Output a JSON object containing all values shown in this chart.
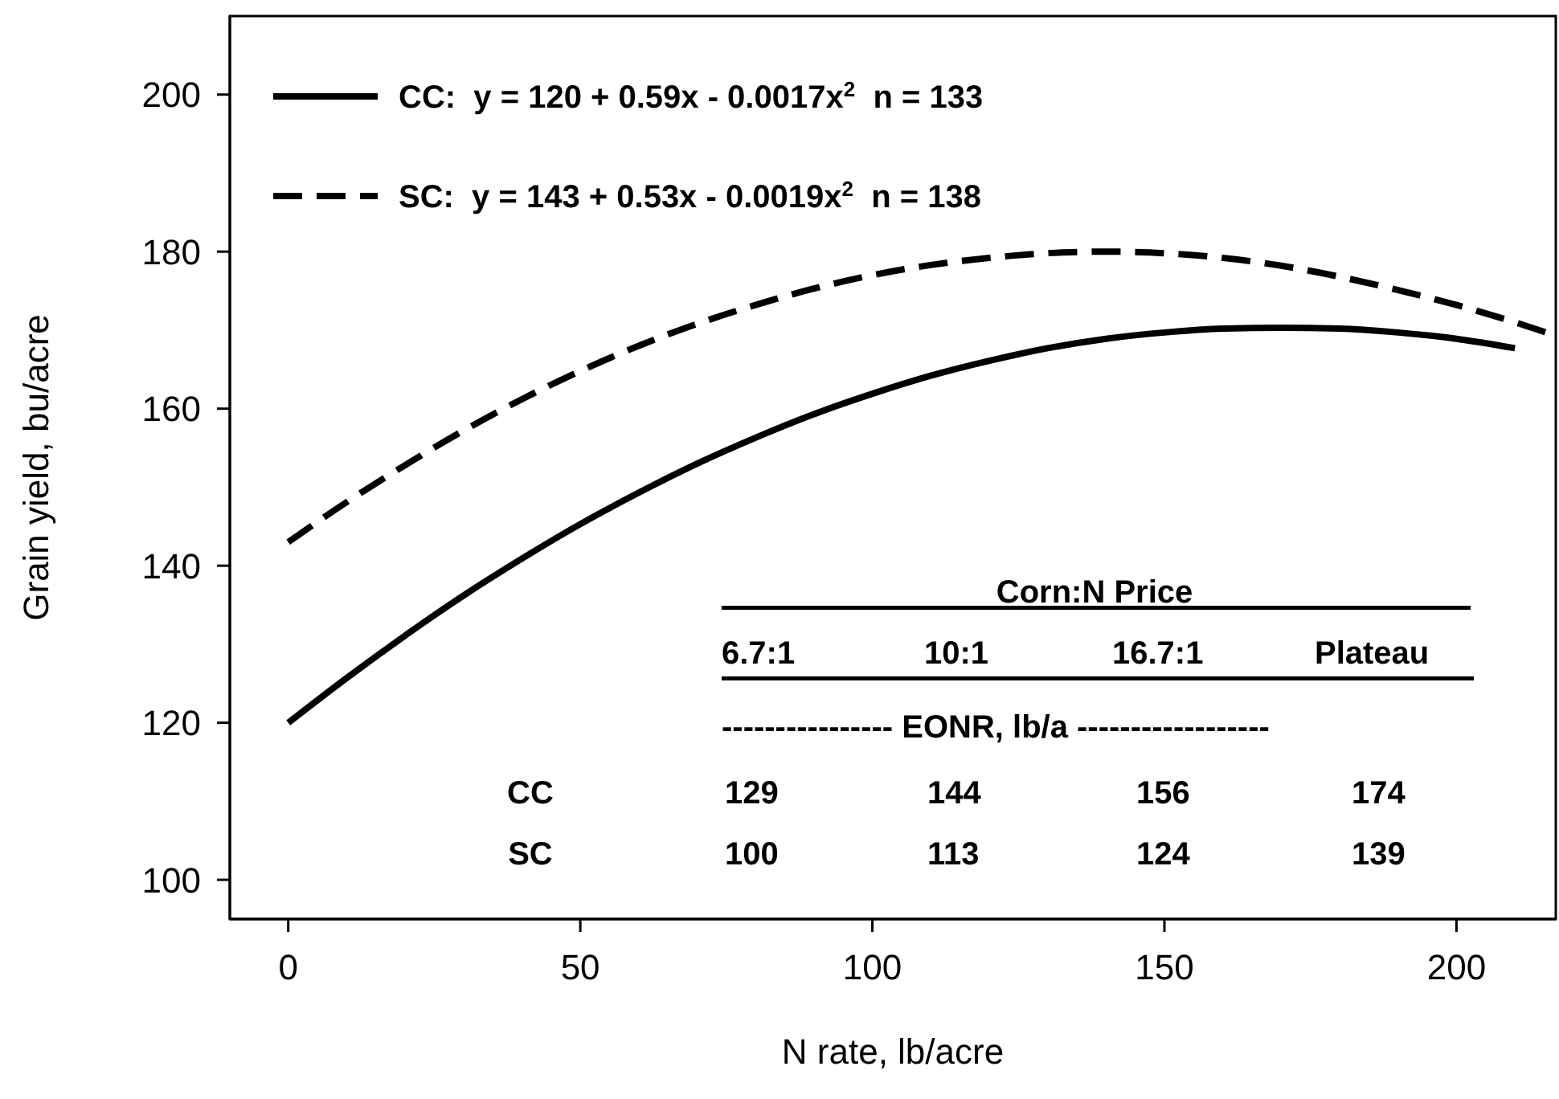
{
  "chart_data": {
    "type": "line",
    "xlabel": "N rate, lb/acre",
    "ylabel": "Grain yield, bu/acre",
    "xlim": [
      -10,
      217
    ],
    "xticks": [
      0,
      50,
      100,
      150,
      200
    ],
    "ylim": [
      95,
      210
    ],
    "yticks": [
      100,
      120,
      140,
      160,
      180,
      200
    ],
    "legend": "top left",
    "series": [
      {
        "name": "CC:  y = 120 + 0.59x - 0.0017x$^{2}$  n = 133",
        "color": "#000000",
        "line_style": "solid",
        "x": [
          0,
          10,
          20,
          30,
          40,
          50,
          60,
          70,
          80,
          90,
          100,
          110,
          120,
          130,
          140,
          150,
          160,
          170,
          180,
          190,
          200,
          210
        ],
        "values": [
          120,
          125.7,
          131.1,
          136.2,
          140.9,
          145.3,
          149.3,
          153,
          156.3,
          159.3,
          161.9,
          164.2,
          166.1,
          167.7,
          168.9,
          169.7,
          170.2,
          170.3,
          170.2,
          169.7,
          168.9,
          167.7
        ]
      },
      {
        "name": "SC:  y = 143 + 0.53x - 0.0019x$^{2}$  n = 138",
        "color": "#000000",
        "line_style": "dashed",
        "x": [
          0,
          10,
          20,
          30,
          40,
          50,
          60,
          70,
          80,
          90,
          100,
          110,
          120,
          130,
          140,
          150,
          160,
          170,
          180,
          190,
          200,
          210,
          217
        ],
        "values": [
          143,
          148.1,
          152.8,
          157.2,
          161.2,
          164.8,
          168,
          170.8,
          173.2,
          175.3,
          177,
          178.3,
          179.2,
          179.8,
          180,
          179.8,
          179.2,
          178.2,
          176.8,
          175.1,
          173.2,
          171,
          169.3
        ]
      }
    ],
    "annotations": [
      "Corn:N Price",
      "6.7:1",
      "10:1",
      "16.7:1",
      "Plateau",
      "---------------- EONR, lb/a ------------------",
      "CC",
      "129",
      "144",
      "156",
      "174",
      "SC",
      "100",
      "113",
      "124",
      "139"
    ]
  }
}
